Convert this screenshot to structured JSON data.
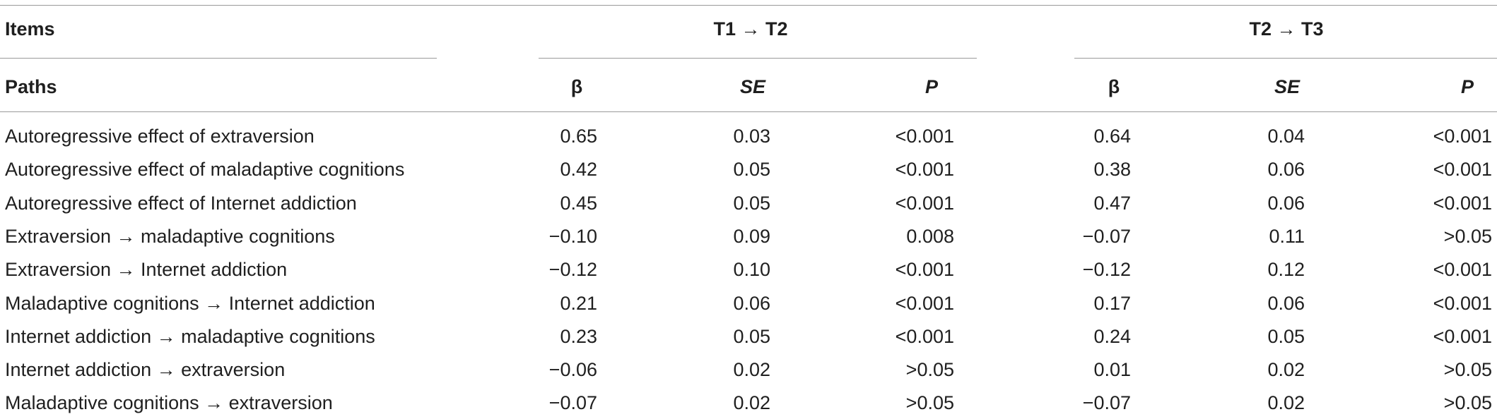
{
  "table": {
    "header_row1": {
      "items": "Items",
      "group1": "T1 → T2",
      "group2": "T2 → T3"
    },
    "header_row2": {
      "paths": "Paths",
      "g1": {
        "beta": "β",
        "se": "SE",
        "p": "P"
      },
      "g2": {
        "beta": "β",
        "se": "SE",
        "p": "P"
      }
    },
    "rows": [
      {
        "path": "Autoregressive effect of extraversion",
        "b1": "0.65",
        "se1": "0.03",
        "p1": "<0.001",
        "b2": "0.64",
        "se2": "0.04",
        "p2": "<0.001"
      },
      {
        "path": "Autoregressive effect of maladaptive cognitions",
        "b1": "0.42",
        "se1": "0.05",
        "p1": "<0.001",
        "b2": "0.38",
        "se2": "0.06",
        "p2": "<0.001"
      },
      {
        "path": "Autoregressive effect of Internet addiction",
        "b1": "0.45",
        "se1": "0.05",
        "p1": "<0.001",
        "b2": "0.47",
        "se2": "0.06",
        "p2": "<0.001"
      },
      {
        "path": "Extraversion → maladaptive cognitions",
        "b1": "−0.10",
        "se1": "0.09",
        "p1": "0.008",
        "b2": "−0.07",
        "se2": "0.11",
        "p2": ">0.05"
      },
      {
        "path": "Extraversion → Internet addiction",
        "b1": "−0.12",
        "se1": "0.10",
        "p1": "<0.001",
        "b2": "−0.12",
        "se2": "0.12",
        "p2": "<0.001"
      },
      {
        "path": "Maladaptive cognitions → Internet addiction",
        "b1": "0.21",
        "se1": "0.06",
        "p1": "<0.001",
        "b2": "0.17",
        "se2": "0.06",
        "p2": "<0.001"
      },
      {
        "path": "Internet addiction → maladaptive cognitions",
        "b1": "0.23",
        "se1": "0.05",
        "p1": "<0.001",
        "b2": "0.24",
        "se2": "0.05",
        "p2": "<0.001"
      },
      {
        "path": "Internet addiction → extraversion",
        "b1": "−0.06",
        "se1": "0.02",
        "p1": ">0.05",
        "b2": "0.01",
        "se2": "0.02",
        "p2": ">0.05"
      },
      {
        "path": "Maladaptive cognitions → extraversion",
        "b1": "−0.07",
        "se1": "0.02",
        "p1": ">0.05",
        "b2": "−0.07",
        "se2": "0.02",
        "p2": ">0.05"
      }
    ]
  }
}
